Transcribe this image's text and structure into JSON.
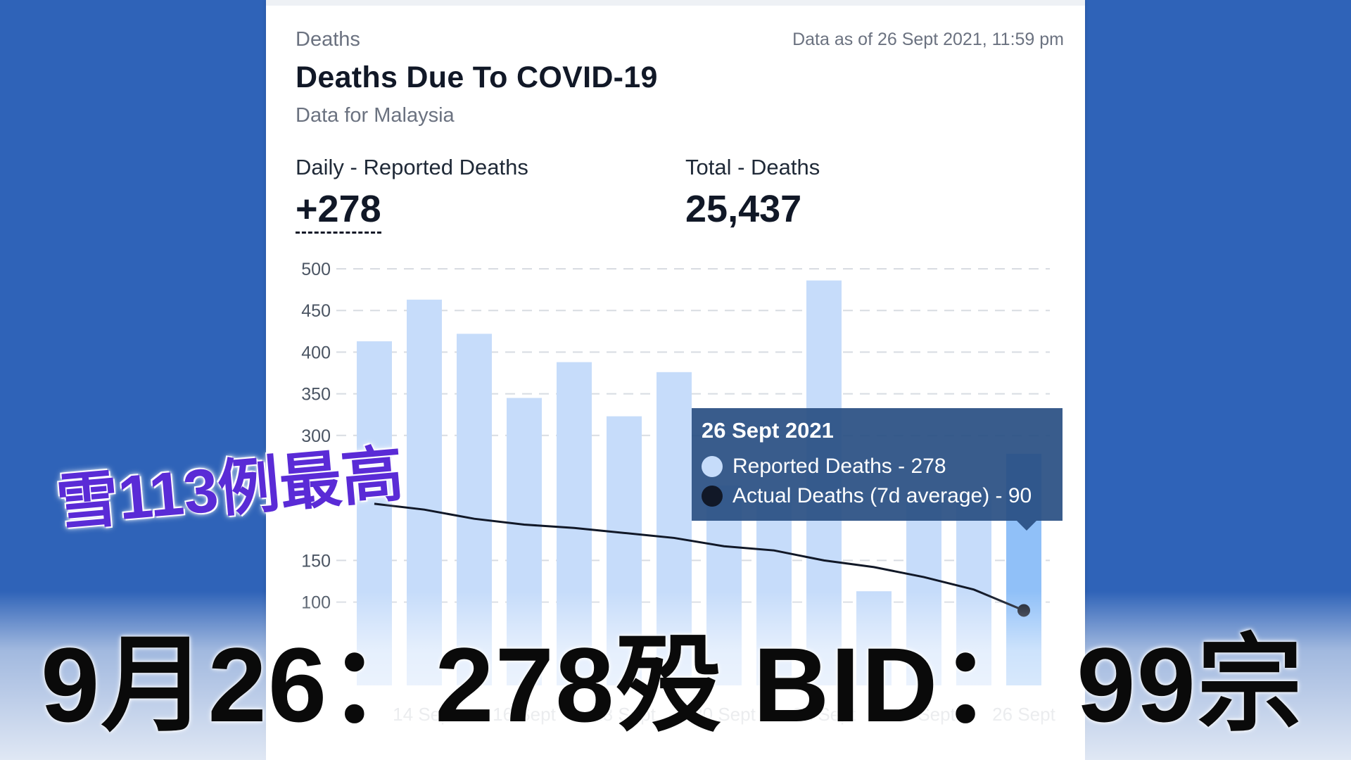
{
  "header": {
    "eyebrow": "Deaths",
    "as_of": "Data as of 26 Sept 2021, 11:59 pm",
    "title": "Deaths Due To COVID-19",
    "subtitle": "Data for Malaysia"
  },
  "stats": {
    "daily_label": "Daily - Reported Deaths",
    "daily_value": "+278",
    "total_label": "Total - Deaths",
    "total_value": "25,437"
  },
  "tooltip": {
    "title": "26 Sept 2021",
    "reported": "Reported Deaths - 278",
    "actual": "Actual Deaths (7d average) - 90"
  },
  "overlay": {
    "headline_small": "雪113例最高",
    "headline_big": "9月26：278殁 BID： 99宗"
  },
  "colors": {
    "bar": "#c6dcfa",
    "bar_highlight": "#90c0f8",
    "line": "#111827",
    "grid": "#d8dce2",
    "tick": "#4b5563",
    "tooltip_bg": "#284e82",
    "background": "#2f63b8"
  },
  "chart_data": {
    "type": "bar",
    "categories": [
      "13 Sept",
      "14 Sept",
      "15 Sept",
      "16 Sept",
      "17 Sept",
      "18 Sept",
      "19 Sept",
      "20 Sept",
      "21 Sept",
      "22 Sept",
      "23 Sept",
      "24 Sept",
      "25 Sept",
      "26 Sept"
    ],
    "x_tick_labels": [
      "14 Sept",
      "16 Sept",
      "18 Sept",
      "20 Sept",
      "22 Sept",
      "24 Sept",
      "26 Sept"
    ],
    "series": [
      {
        "name": "Reported Deaths",
        "type": "bar",
        "values": [
          413,
          463,
          422,
          345,
          388,
          323,
          376,
          240,
          230,
          486,
          113,
          220,
          230,
          278
        ]
      },
      {
        "name": "Actual Deaths (7d average)",
        "type": "line",
        "values": [
          218,
          211,
          200,
          193,
          189,
          183,
          177,
          167,
          162,
          150,
          142,
          130,
          115,
          90
        ]
      }
    ],
    "y_ticks": [
      100,
      150,
      300,
      350,
      400,
      450,
      500
    ],
    "ylim": [
      0,
      500
    ],
    "grid": true,
    "highlight_category": "26 Sept"
  }
}
